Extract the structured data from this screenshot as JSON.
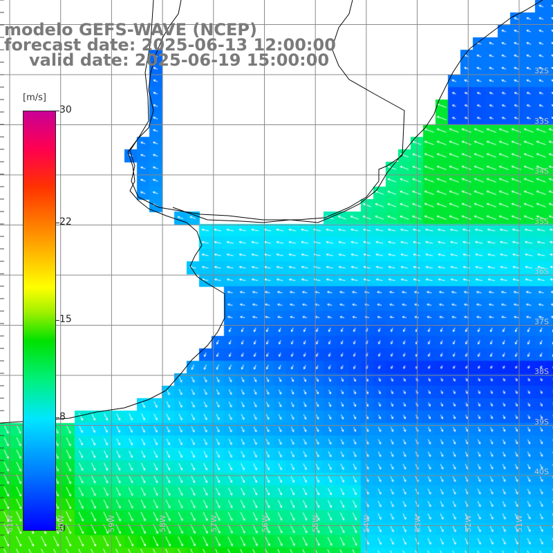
{
  "title": {
    "model": "modelo GEFS-WAVE (NCEP)",
    "forecast": "forecast date: 2025-06-13 12:00:00",
    "valid": "valid date: 2025-06-19 15:00:00"
  },
  "colorbar": {
    "unit": "[m/s]",
    "labels": [
      "30",
      "22",
      "15",
      "8",
      "0"
    ],
    "values": [
      30,
      22,
      15,
      8,
      0
    ]
  },
  "lat_labels": [
    "32S",
    "33S",
    "34S",
    "35S",
    "36S",
    "37S",
    "38S",
    "39S",
    "40S"
  ],
  "lon_labels": [
    "61W",
    "60W",
    "59W",
    "58W",
    "57W",
    "56W",
    "55W",
    "54W",
    "53W",
    "52W",
    "51W"
  ],
  "colors": {
    "title": "#7a7a7a",
    "arrow": "#ffffff",
    "coastline": "#000000",
    "grid": "#888888",
    "speed_low": "#0000ff",
    "speed_mid": "#00e6ff",
    "speed_high": "#00e100"
  }
}
